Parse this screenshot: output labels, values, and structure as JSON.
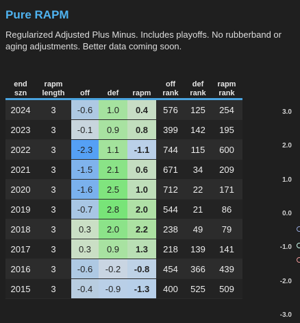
{
  "header": {
    "title": "Pure RAPM",
    "subtitle": "Regularized Adjusted Plus Minus. Includes playoffs. No rubberband or aging adjustments. Better data coming soon."
  },
  "table": {
    "columns": [
      {
        "line1": "end",
        "line2": "szn"
      },
      {
        "line1": "rapm",
        "line2": "length"
      },
      {
        "line1": "",
        "line2": "off"
      },
      {
        "line1": "",
        "line2": "def"
      },
      {
        "line1": "",
        "line2": "rapm"
      },
      {
        "line1": "off",
        "line2": "rank"
      },
      {
        "line1": "def",
        "line2": "rank"
      },
      {
        "line1": "rapm",
        "line2": "rank"
      }
    ],
    "rows": [
      {
        "szn": "2024",
        "len": "3",
        "off": "-0.6",
        "def": "1.0",
        "rapm": "0.4",
        "off_rank": "576",
        "def_rank": "125",
        "rapm_rank": "254"
      },
      {
        "szn": "2023",
        "len": "3",
        "off": "-0.1",
        "def": "0.9",
        "rapm": "0.8",
        "off_rank": "399",
        "def_rank": "142",
        "rapm_rank": "195"
      },
      {
        "szn": "2022",
        "len": "3",
        "off": "-2.3",
        "def": "1.1",
        "rapm": "-1.1",
        "off_rank": "744",
        "def_rank": "115",
        "rapm_rank": "600"
      },
      {
        "szn": "2021",
        "len": "3",
        "off": "-1.5",
        "def": "2.1",
        "rapm": "0.6",
        "off_rank": "671",
        "def_rank": "34",
        "rapm_rank": "209"
      },
      {
        "szn": "2020",
        "len": "3",
        "off": "-1.6",
        "def": "2.5",
        "rapm": "1.0",
        "off_rank": "712",
        "def_rank": "22",
        "rapm_rank": "171"
      },
      {
        "szn": "2019",
        "len": "3",
        "off": "-0.7",
        "def": "2.8",
        "rapm": "2.0",
        "off_rank": "544",
        "def_rank": "21",
        "rapm_rank": "86"
      },
      {
        "szn": "2018",
        "len": "3",
        "off": "0.3",
        "def": "2.0",
        "rapm": "2.2",
        "off_rank": "238",
        "def_rank": "49",
        "rapm_rank": "79"
      },
      {
        "szn": "2017",
        "len": "3",
        "off": "0.3",
        "def": "0.9",
        "rapm": "1.3",
        "off_rank": "218",
        "def_rank": "139",
        "rapm_rank": "141"
      },
      {
        "szn": "2016",
        "len": "3",
        "off": "-0.6",
        "def": "-0.2",
        "rapm": "-0.8",
        "off_rank": "454",
        "def_rank": "366",
        "rapm_rank": "439"
      },
      {
        "szn": "2015",
        "len": "3",
        "off": "-0.4",
        "def": "-0.9",
        "rapm": "-1.3",
        "off_rank": "400",
        "def_rank": "525",
        "rapm_rank": "509"
      }
    ]
  },
  "side_chart": {
    "ticks": [
      "3.0",
      "2.0",
      "1.0",
      "0.0",
      "-1.0",
      "-2.0",
      "-3.0"
    ],
    "tick_values": [
      3,
      2,
      1,
      0,
      -1,
      -2,
      -3
    ]
  },
  "colors": {
    "accent": "#4fb3f0",
    "header_rule": "#4aa3df"
  }
}
